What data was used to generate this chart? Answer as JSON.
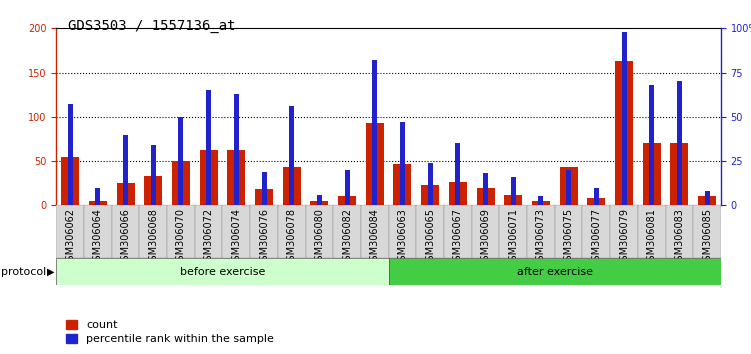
{
  "title": "GDS3503 / 1557136_at",
  "samples": [
    "GSM306062",
    "GSM306064",
    "GSM306066",
    "GSM306068",
    "GSM306070",
    "GSM306072",
    "GSM306074",
    "GSM306076",
    "GSM306078",
    "GSM306080",
    "GSM306082",
    "GSM306084",
    "GSM306063",
    "GSM306065",
    "GSM306067",
    "GSM306069",
    "GSM306071",
    "GSM306073",
    "GSM306075",
    "GSM306077",
    "GSM306079",
    "GSM306081",
    "GSM306083",
    "GSM306085"
  ],
  "count_values": [
    55,
    5,
    25,
    33,
    50,
    63,
    62,
    18,
    43,
    5,
    10,
    93,
    47,
    23,
    26,
    20,
    12,
    5,
    43,
    8,
    163,
    70,
    70,
    10
  ],
  "percentile_values": [
    57,
    10,
    40,
    34,
    50,
    65,
    63,
    19,
    56,
    6,
    20,
    82,
    47,
    24,
    35,
    18,
    16,
    5,
    20,
    10,
    98,
    68,
    70,
    8
  ],
  "before_exercise_count": 12,
  "after_exercise_count": 12,
  "left_ylim": [
    0,
    200
  ],
  "left_yticks": [
    0,
    50,
    100,
    150,
    200
  ],
  "left_yticklabels": [
    "0",
    "50",
    "100",
    "150",
    "200"
  ],
  "right_yticks": [
    0,
    25,
    50,
    75,
    100
  ],
  "right_yticklabels": [
    "0",
    "25",
    "50",
    "75",
    "100%"
  ],
  "bar_color_count": "#cc2200",
  "bar_color_pct": "#2222cc",
  "before_label": "before exercise",
  "after_label": "after exercise",
  "before_bg": "#ccffcc",
  "after_bg": "#44cc44",
  "protocol_label": "protocol",
  "legend_count": "count",
  "legend_pct": "percentile rank within the sample",
  "grid_color": "#000000",
  "title_fontsize": 10,
  "tick_fontsize": 7,
  "proto_fontsize": 8,
  "legend_fontsize": 8
}
